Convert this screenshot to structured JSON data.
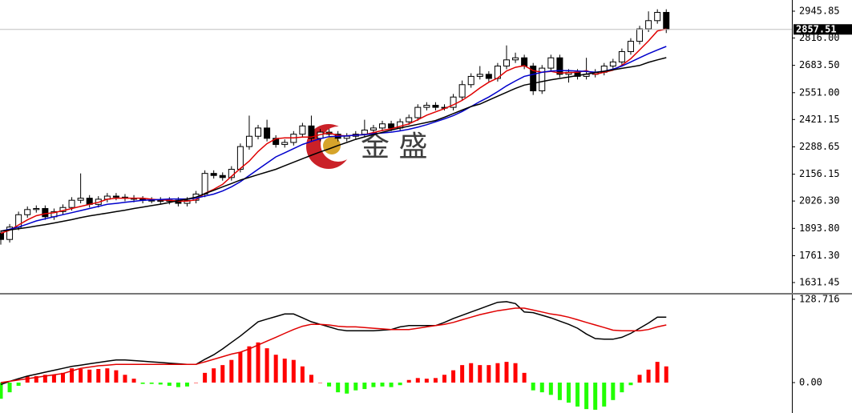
{
  "chart_data": [
    {
      "type": "candlestick",
      "watermark": "金 盛",
      "open": [
        1870,
        1840,
        1900,
        1960,
        1985,
        1990,
        1950,
        1975,
        1995,
        2030,
        2040,
        2010,
        2035,
        2050,
        2045,
        2040,
        2035,
        2030,
        2030,
        2025,
        2030,
        2015,
        2030,
        2060,
        2160,
        2150,
        2140,
        2180,
        2290,
        2340,
        2380,
        2330,
        2300,
        2310,
        2350,
        2390,
        2330,
        2360,
        2350,
        2330,
        2340,
        2350,
        2370,
        2380,
        2400,
        2380,
        2410,
        2430,
        2480,
        2490,
        2480,
        2480,
        2530,
        2590,
        2630,
        2640,
        2620,
        2680,
        2710,
        2720,
        2680,
        2560,
        2670,
        2720,
        2640,
        2650,
        2630,
        2640,
        2650,
        2680,
        2700,
        2750,
        2800,
        2860,
        2900,
        2940
      ],
      "high": [
        1885,
        1915,
        1975,
        2000,
        2005,
        2005,
        1990,
        2010,
        2045,
        2160,
        2055,
        2050,
        2065,
        2065,
        2060,
        2055,
        2050,
        2045,
        2045,
        2045,
        2045,
        2045,
        2075,
        2175,
        2175,
        2165,
        2195,
        2305,
        2440,
        2395,
        2420,
        2345,
        2325,
        2365,
        2405,
        2440,
        2375,
        2375,
        2365,
        2355,
        2365,
        2420,
        2395,
        2415,
        2415,
        2425,
        2445,
        2495,
        2505,
        2505,
        2495,
        2545,
        2610,
        2645,
        2680,
        2655,
        2695,
        2780,
        2745,
        2735,
        2695,
        2685,
        2735,
        2735,
        2665,
        2665,
        2720,
        2665,
        2695,
        2715,
        2765,
        2815,
        2875,
        2945,
        2955,
        2955
      ],
      "low": [
        1815,
        1825,
        1885,
        1945,
        1970,
        1935,
        1935,
        1960,
        1980,
        2015,
        1995,
        1995,
        2020,
        2030,
        2025,
        2020,
        2015,
        2015,
        2010,
        2010,
        2000,
        2000,
        2015,
        2045,
        2135,
        2125,
        2125,
        2165,
        2275,
        2325,
        2315,
        2285,
        2285,
        2295,
        2335,
        2315,
        2315,
        2335,
        2315,
        2315,
        2325,
        2335,
        2355,
        2365,
        2365,
        2365,
        2395,
        2415,
        2465,
        2465,
        2465,
        2465,
        2515,
        2575,
        2615,
        2605,
        2605,
        2665,
        2695,
        2665,
        2540,
        2545,
        2655,
        2625,
        2600,
        2615,
        2615,
        2625,
        2635,
        2665,
        2685,
        2735,
        2785,
        2845,
        2885,
        2840
      ],
      "close": [
        1840,
        1900,
        1960,
        1985,
        1990,
        1950,
        1975,
        1995,
        2030,
        2040,
        2010,
        2035,
        2050,
        2045,
        2040,
        2035,
        2030,
        2030,
        2025,
        2030,
        2015,
        2030,
        2060,
        2160,
        2150,
        2140,
        2180,
        2290,
        2340,
        2380,
        2330,
        2300,
        2310,
        2350,
        2390,
        2330,
        2360,
        2350,
        2330,
        2340,
        2350,
        2370,
        2380,
        2400,
        2380,
        2410,
        2430,
        2480,
        2490,
        2480,
        2480,
        2530,
        2590,
        2630,
        2640,
        2620,
        2680,
        2710,
        2720,
        2680,
        2560,
        2670,
        2720,
        2640,
        2650,
        2630,
        2640,
        2650,
        2680,
        2700,
        2750,
        2800,
        2860,
        2900,
        2940,
        2857.51
      ],
      "up_color": "#ffffff",
      "down_color": "#000000",
      "series": [
        {
          "color": "#e00000",
          "values": [
            1870,
            1885,
            1910,
            1935,
            1955,
            1965,
            1970,
            1980,
            1990,
            2000,
            2010,
            2020,
            2035,
            2040,
            2040,
            2040,
            2040,
            2035,
            2032,
            2030,
            2026,
            2026,
            2032,
            2063,
            2083,
            2107,
            2146,
            2184,
            2220,
            2266,
            2304,
            2328,
            2332,
            2332,
            2336,
            2336,
            2348,
            2356,
            2344,
            2342,
            2346,
            2348,
            2358,
            2368,
            2376,
            2388,
            2400,
            2420,
            2442,
            2458,
            2474,
            2492,
            2514,
            2542,
            2574,
            2602,
            2622,
            2656,
            2674,
            2682,
            2658,
            2650,
            2654,
            2646,
            2648,
            2650,
            2658,
            2640,
            2650,
            2660,
            2684,
            2716,
            2758,
            2802,
            2850,
            2860
          ]
        },
        {
          "color": "#0000cc",
          "values": [
            1880,
            1890,
            1900,
            1915,
            1930,
            1940,
            1950,
            1960,
            1970,
            1980,
            1990,
            2000,
            2010,
            2015,
            2020,
            2025,
            2030,
            2032,
            2034,
            2036,
            2036,
            2036,
            2040,
            2050,
            2060,
            2075,
            2095,
            2120,
            2150,
            2180,
            2210,
            2240,
            2260,
            2280,
            2300,
            2315,
            2328,
            2338,
            2340,
            2342,
            2345,
            2348,
            2352,
            2356,
            2360,
            2366,
            2374,
            2384,
            2396,
            2410,
            2424,
            2440,
            2460,
            2484,
            2508,
            2530,
            2556,
            2584,
            2608,
            2630,
            2640,
            2650,
            2656,
            2658,
            2658,
            2656,
            2654,
            2650,
            2655,
            2665,
            2680,
            2700,
            2720,
            2740,
            2758,
            2775
          ]
        },
        {
          "color": "#000000",
          "values": [
            1880,
            1886,
            1892,
            1898,
            1905,
            1912,
            1920,
            1928,
            1936,
            1946,
            1954,
            1961,
            1968,
            1975,
            1982,
            1990,
            1997,
            2004,
            2011,
            2019,
            2028,
            2036,
            2045,
            2062,
            2078,
            2095,
            2111,
            2128,
            2141,
            2154,
            2167,
            2180,
            2197,
            2214,
            2231,
            2248,
            2264,
            2279,
            2295,
            2310,
            2325,
            2337,
            2348,
            2359,
            2370,
            2380,
            2389,
            2398,
            2407,
            2416,
            2432,
            2450,
            2467,
            2484,
            2496,
            2515,
            2534,
            2553,
            2572,
            2588,
            2596,
            2605,
            2613,
            2620,
            2627,
            2634,
            2641,
            2648,
            2655,
            2662,
            2669,
            2676,
            2683,
            2698,
            2710,
            2721
          ]
        }
      ],
      "last_price": 2857.51,
      "ylim": [
        1581,
        3000
      ],
      "yticks": [
        2945.85,
        {
          "value": 2816,
          "label": "2816.00"
        },
        {
          "value": 2683.5,
          "label": "2683.50"
        },
        {
          "value": 2551,
          "label": "2551.00"
        },
        2421.15,
        2288.65,
        2156.15,
        {
          "value": 2026.3,
          "label": "2026.30"
        },
        {
          "value": 1893.8,
          "label": "1893.80"
        },
        {
          "value": 1761.3,
          "label": "1761.30"
        },
        1631.45
      ]
    },
    {
      "type": "macd",
      "histogram": [
        -25,
        -15,
        -5,
        10,
        10,
        12,
        12,
        15,
        22,
        21,
        20,
        21,
        22,
        19,
        12,
        6,
        -2,
        -2,
        -3,
        -5,
        -7,
        -6,
        0,
        15,
        22,
        27,
        35,
        47,
        56,
        62,
        53,
        43,
        37,
        35,
        25,
        12,
        0,
        -6,
        -15,
        -17,
        -12,
        -10,
        -7,
        -6,
        -7,
        -4,
        4,
        7,
        6,
        7,
        12,
        19,
        27,
        30,
        27,
        27,
        30,
        32,
        30,
        15,
        -12,
        -15,
        -19,
        -27,
        -31,
        -37,
        -41,
        -42,
        -37,
        -27,
        -15,
        -4,
        12,
        20,
        32,
        25
      ],
      "up_color": "#ff0000",
      "down_color": "#22ff00",
      "series": [
        {
          "color": "#000000",
          "values": [
            -3,
            2,
            6,
            10,
            13,
            16,
            19,
            22,
            25,
            27,
            29,
            31,
            33,
            35,
            35,
            34,
            33,
            32,
            31,
            30,
            29,
            28,
            28,
            36,
            43,
            52,
            62,
            72,
            83,
            94,
            98,
            102,
            106,
            106,
            100,
            94,
            90,
            86,
            82,
            80,
            80,
            80,
            80,
            81,
            82,
            86,
            88,
            88,
            88,
            88,
            93,
            99,
            104,
            109,
            114,
            119,
            124,
            125,
            122,
            109,
            108,
            104,
            100,
            95,
            90,
            84,
            75,
            68,
            67,
            67,
            70,
            76,
            84,
            92,
            101,
            101
          ]
        },
        {
          "color": "#e00000",
          "values": [
            0,
            2,
            4,
            6,
            8,
            10,
            12,
            14,
            18,
            22,
            24,
            26,
            27,
            28,
            28,
            28,
            28,
            28,
            28,
            28,
            28,
            28,
            28,
            32,
            36,
            40,
            44,
            47,
            52,
            58,
            64,
            70,
            76,
            82,
            87,
            90,
            90,
            89,
            87,
            86,
            86,
            85,
            84,
            83,
            82,
            82,
            82,
            84,
            86,
            88,
            90,
            93,
            97,
            101,
            105,
            108,
            111,
            113,
            115,
            115,
            112,
            109,
            106,
            104,
            101,
            97,
            93,
            89,
            85,
            81,
            80,
            80,
            80,
            82,
            86,
            89
          ]
        }
      ],
      "ylim": [
        -47,
        136
      ],
      "yticks": [
        128.716,
        {
          "value": 0,
          "label": "0.00"
        }
      ]
    }
  ]
}
